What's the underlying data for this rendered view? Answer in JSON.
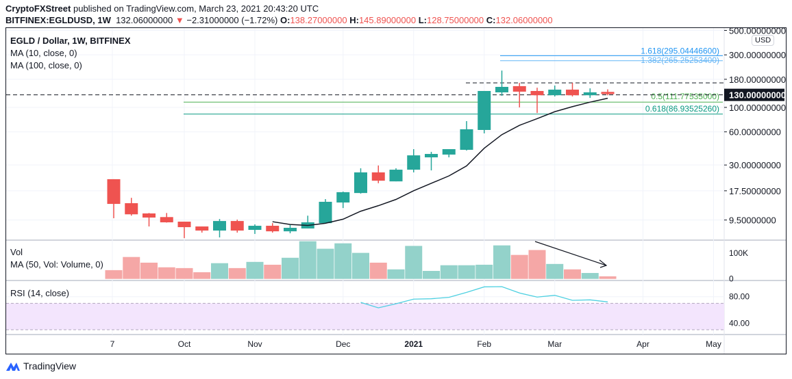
{
  "header": {
    "publisher": "CryptoFXStreet",
    "published_text": "published on TradingView.com, March 23, 2021 20:43:20 UTC",
    "symbol": "BITFINEX:EGLDUSD, 1W",
    "last": "132.06000000",
    "change": "−2.31000000 (−1.72%)",
    "o_label": "O:",
    "o": "138.27000000",
    "h_label": "H:",
    "h": "145.89000000",
    "l_label": "L:",
    "l": "128.75000000",
    "c_label": "C:",
    "c": "132.06000000"
  },
  "legend": {
    "title": "EGLD / Dollar, 1W, BITFINEX",
    "ma10": "MA (10, close, 0)",
    "ma100": "MA (100, close, 0)",
    "vol": "Vol",
    "vol_ma": "MA (50, Vol: Volume, 0)",
    "rsi": "RSI (14, close)"
  },
  "price_axis": {
    "currency": "USD",
    "ticks": [
      "500.00000000",
      "300.00000000",
      "180.00000000",
      "100.00000000",
      "60.00000000",
      "30.00000000",
      "17.50000000",
      "9.50000000"
    ],
    "tick_values": [
      500,
      300,
      180,
      100,
      60,
      30,
      17.5,
      9.5
    ],
    "current_label": "130.00000000",
    "current_value": 130
  },
  "volume_axis": {
    "ticks": [
      "100K",
      "0"
    ],
    "tick_values": [
      100000,
      0
    ]
  },
  "rsi_axis": {
    "ticks": [
      "80.00",
      "40.00"
    ],
    "tick_values": [
      80,
      40
    ],
    "band": [
      30,
      70
    ]
  },
  "time_axis": {
    "labels": [
      "7",
      "Oct",
      "Nov",
      "Dec",
      "2021",
      "Feb",
      "Mar",
      "Apr",
      "May"
    ],
    "label_bar_index": [
      0,
      4,
      8,
      13,
      17,
      21,
      25,
      30,
      34
    ]
  },
  "fib_levels": [
    {
      "label": "1.618(295.04446600)",
      "value": 295.044466,
      "color": "#2196f3"
    },
    {
      "label": "1.382(265.25253400)",
      "value": 265.252534,
      "color": "#64b5f6"
    },
    {
      "label": "0.5(111.77535000)",
      "value": 111.77535,
      "color": "#4caf50"
    },
    {
      "label": "0.618(86.93525260)",
      "value": 86.9352526,
      "color": "#089981"
    }
  ],
  "horizontal_lines": [
    {
      "value": 167,
      "style": "dashed"
    },
    {
      "value": 130,
      "style": "dashed"
    }
  ],
  "colors": {
    "up": "#26a69a",
    "down": "#ef5350",
    "vol_up": "#93d2ca",
    "vol_down": "#f5a7a6",
    "ma10": "#131722",
    "rsi": "#4dd0e1",
    "rsi_band": "#f3e5fd"
  },
  "chart_data": {
    "type": "candlestick",
    "scale": "log",
    "candles": [
      [
        22.3,
        22.3,
        9.86,
        13.3
      ],
      [
        13.5,
        15.1,
        10.4,
        10.7
      ],
      [
        10.9,
        11.0,
        8.3,
        10.0
      ],
      [
        10.1,
        11.0,
        9.0,
        9.05
      ],
      [
        9.18,
        9.18,
        6.5,
        8.18
      ],
      [
        8.3,
        8.3,
        7.3,
        7.62
      ],
      [
        7.62,
        9.7,
        6.6,
        9.3
      ],
      [
        9.3,
        9.58,
        7.3,
        7.62
      ],
      [
        7.73,
        8.67,
        7.1,
        8.42
      ],
      [
        8.42,
        8.9,
        7.3,
        7.5
      ],
      [
        7.5,
        8.55,
        7.2,
        8.07
      ],
      [
        7.96,
        10.4,
        7.96,
        9.05
      ],
      [
        8.9,
        14.7,
        8.9,
        13.9
      ],
      [
        13.7,
        17.2,
        12.2,
        17.0
      ],
      [
        16.7,
        28.0,
        16.5,
        25.7
      ],
      [
        25.7,
        29.7,
        20.5,
        21.6
      ],
      [
        21.3,
        28.0,
        21.3,
        27.2
      ],
      [
        27.2,
        41.8,
        25.7,
        36.7
      ],
      [
        35.2,
        39.5,
        26.8,
        37.8
      ],
      [
        37.3,
        41.8,
        35.2,
        41.8
      ],
      [
        41.2,
        75.1,
        40.6,
        63.3
      ],
      [
        62.4,
        141,
        58.1,
        141
      ],
      [
        137,
        216,
        127.5,
        153.6
      ],
      [
        156,
        167,
        100,
        139
      ],
      [
        141,
        151,
        89,
        129
      ],
      [
        129,
        158,
        125.7,
        145
      ],
      [
        145,
        167,
        125.7,
        129
      ],
      [
        129,
        149,
        122,
        137
      ],
      [
        138.27,
        145.89,
        128.75,
        132.06
      ]
    ],
    "candle_fields": [
      "open",
      "high",
      "low",
      "close"
    ],
    "volume": [
      34000,
      85000,
      63000,
      45000,
      42000,
      26000,
      61000,
      42000,
      66000,
      55000,
      82000,
      146000,
      117000,
      138000,
      101000,
      63000,
      37000,
      128000,
      31000,
      53000,
      53000,
      55000,
      130000,
      93000,
      112000,
      58000,
      37000,
      23000,
      10000
    ],
    "rsi_start_index": 14,
    "rsi": [
      71.4,
      63.1,
      69.3,
      76.3,
      76.9,
      79.0,
      86.6,
      94.9,
      95.2,
      85.6,
      79.4,
      82.1,
      74.5,
      75.2,
      72.1
    ]
  }
}
